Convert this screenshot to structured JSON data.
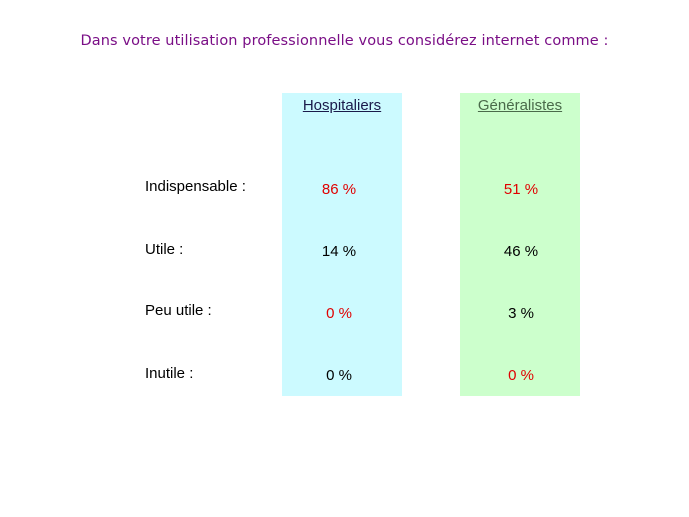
{
  "title": "Dans votre utilisation professionnelle vous considérez internet comme :",
  "columns": {
    "hospitaliers": "Hospitaliers",
    "generalistes": "Généralistes"
  },
  "colors": {
    "title": "#7a0e86",
    "highlight": "#e00000",
    "normal": "#000000",
    "hospitaliers_bg": "#ccfaff",
    "generalistes_bg": "#ccffcc"
  },
  "rows": [
    {
      "label": "Indispensable :",
      "hospitaliers": "86 %",
      "generalistes": "51 %",
      "hosp_highlight": true,
      "gen_highlight": true
    },
    {
      "label": "Utile :",
      "hospitaliers": "14 %",
      "generalistes": "46 %",
      "hosp_highlight": false,
      "gen_highlight": false
    },
    {
      "label": "Peu utile :",
      "hospitaliers": "0 %",
      "generalistes": "3 %",
      "hosp_highlight": true,
      "gen_highlight": false
    },
    {
      "label": "Inutile :",
      "hospitaliers": "0 %",
      "generalistes": "0 %",
      "hosp_highlight": false,
      "gen_highlight": true
    }
  ]
}
